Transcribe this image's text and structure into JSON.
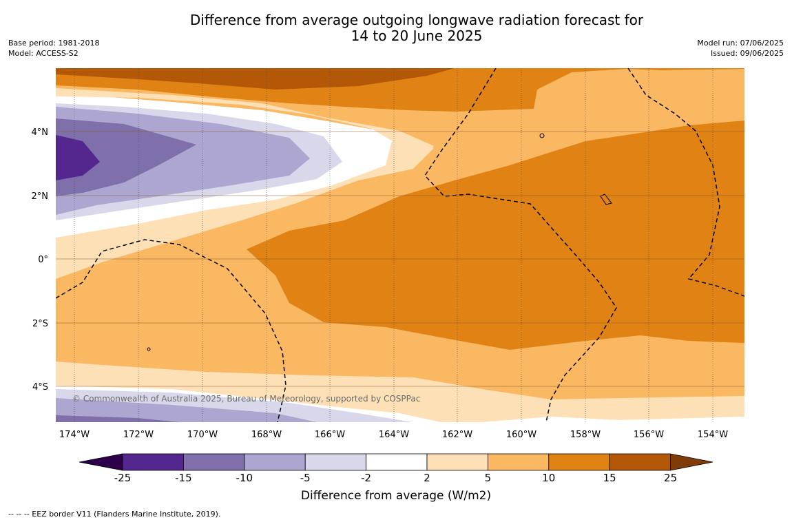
{
  "title_line1": "Difference from average outgoing longwave radiation forecast for",
  "title_line2": "14 to 20 June 2025",
  "base_period": "Base period: 1981-2018",
  "model": "Model: ACCESS-S2",
  "model_run": "Model run: 07/06/2025",
  "issued": "Issued: 09/06/2025",
  "copyright": "© Commonwealth of Australia 2025, Bureau of Meteorology, supported by COSPPac",
  "lat_labels": [
    "4°N",
    "2°N",
    "0°",
    "2°S",
    "4°S"
  ],
  "lon_labels": [
    "174°W",
    "172°W",
    "170°W",
    "168°W",
    "166°W",
    "164°W",
    "162°W",
    "160°W",
    "158°W",
    "156°W",
    "154°W"
  ],
  "colorbar": {
    "title": "Difference from average (W/m2)",
    "ticks": [
      "-25",
      "-15",
      "-10",
      "-5",
      "-2",
      "2",
      "5",
      "10",
      "15",
      "25"
    ],
    "colors": [
      "#54278f",
      "#7f6fab",
      "#ada6d0",
      "#d9d8eb",
      "#ffffff",
      "#fee0b6",
      "#fbb862",
      "#e08214",
      "#b35806"
    ],
    "under_color": "#2d004b",
    "over_color": "#7f3b08"
  },
  "footer": "--  --  -- EEZ border V11 (Flanders Marine Institute, 2019)."
}
